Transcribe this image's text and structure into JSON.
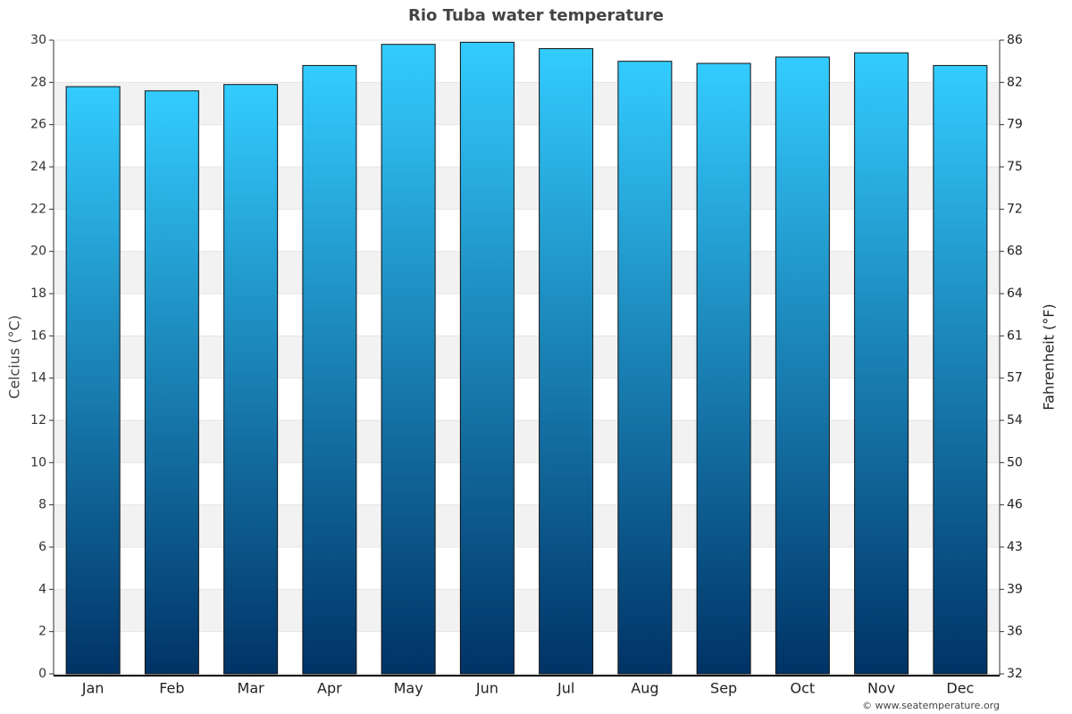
{
  "chart_data": {
    "type": "bar",
    "title": "Rio Tuba water temperature",
    "y_label": "Celcius (°C)",
    "y2_label": "Fahrenheit (°F)",
    "categories": [
      "Jan",
      "Feb",
      "Mar",
      "Apr",
      "May",
      "Jun",
      "Jul",
      "Aug",
      "Sep",
      "Oct",
      "Nov",
      "Dec"
    ],
    "values": [
      27.8,
      27.6,
      27.9,
      28.8,
      29.8,
      29.9,
      29.6,
      29.0,
      28.9,
      29.2,
      29.4,
      28.8
    ],
    "gradient": [
      "#33ccff",
      "#003366"
    ],
    "ylim": [
      0,
      30
    ],
    "yticks": [
      0,
      2,
      4,
      6,
      8,
      10,
      12,
      14,
      16,
      18,
      20,
      22,
      24,
      26,
      28,
      30
    ],
    "y2lim": [
      32,
      86
    ],
    "y2ticks": [
      32,
      {
        "value": 35.6,
        "label": "36"
      },
      {
        "value": 39.2,
        "label": "39"
      },
      {
        "value": 42.8,
        "label": "43"
      },
      {
        "value": 46.4,
        "label": "46"
      },
      50,
      {
        "value": 53.6,
        "label": "54"
      },
      {
        "value": 57.2,
        "label": "57"
      },
      {
        "value": 60.8,
        "label": "61"
      },
      {
        "value": 64.4,
        "label": "64"
      },
      68,
      {
        "value": 71.6,
        "label": "72"
      },
      {
        "value": 75.2,
        "label": "75"
      },
      {
        "value": 78.8,
        "label": "79"
      },
      {
        "value": 82.4,
        "label": "82"
      },
      86
    ],
    "grid": true,
    "source": "© www.seatemperature.org"
  }
}
